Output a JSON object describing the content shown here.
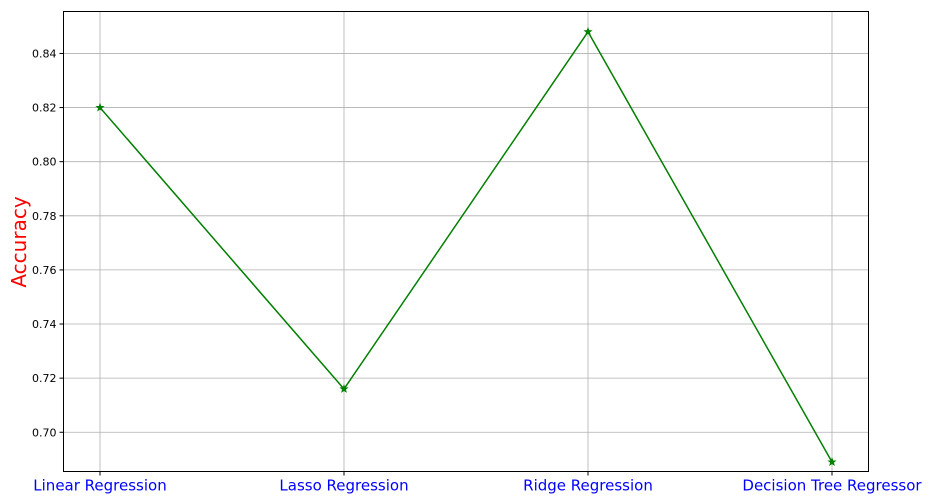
{
  "chart_data": {
    "type": "line",
    "categories": [
      "Linear Regression",
      "Lasso Regression",
      "Ridge Regression",
      "Decision Tree Regressor"
    ],
    "series": [
      {
        "values": [
          0.82,
          0.716,
          0.848,
          0.689
        ]
      }
    ],
    "title": "",
    "xlabel": "",
    "ylabel": "Accuracy",
    "ylim": [
      0.6855,
      0.8555
    ],
    "yticks": [
      "0.70",
      "0.72",
      "0.74",
      "0.76",
      "0.78",
      "0.80",
      "0.82",
      "0.84"
    ],
    "grid": true,
    "marker": "star",
    "colors": {
      "line": "#008000",
      "ylabel": "#ff0000",
      "xticks": "#0000ff"
    }
  }
}
